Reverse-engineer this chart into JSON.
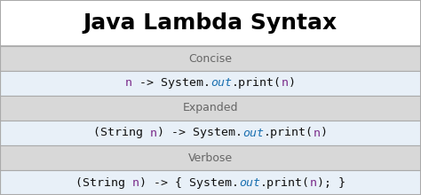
{
  "title": "Java Lambda Syntax",
  "title_fontsize": 18,
  "title_bg": "#ffffff",
  "border_color": "#aaaaaa",
  "header_color": "#d8d8d8",
  "code_bg": "#e8f0f8",
  "header_text_color": "#666666",
  "header_fontsize": 9,
  "code_fontsize": 9.5,
  "color_black": "#111111",
  "color_purple": "#7B2D8B",
  "color_blue_italic": "#1a70b0",
  "rows": [
    {
      "type": "header",
      "text": "Concise"
    },
    {
      "type": "code",
      "key": "concise"
    },
    {
      "type": "header",
      "text": "Expanded"
    },
    {
      "type": "code",
      "key": "expanded"
    },
    {
      "type": "header",
      "text": "Verbose"
    },
    {
      "type": "code",
      "key": "verbose"
    }
  ],
  "code": {
    "concise": [
      [
        "n",
        " -> System.",
        "out",
        ".print(",
        "n",
        ")"
      ]
    ],
    "expanded": [
      [
        "(String ",
        "n",
        ") -> System.",
        "out",
        ".print(",
        "n",
        ")"
      ]
    ],
    "verbose": [
      [
        "(String ",
        "n",
        ") -> { System.",
        "out",
        ".print(",
        "n",
        "); }"
      ]
    ]
  },
  "code_colors": {
    "concise": [
      "#7B2D8B",
      "#111111",
      "#1a70b0",
      "#111111",
      "#7B2D8B",
      "#111111"
    ],
    "expanded": [
      "#111111",
      "#7B2D8B",
      "#111111",
      "#1a70b0",
      "#111111",
      "#7B2D8B",
      "#111111"
    ],
    "verbose": [
      "#111111",
      "#7B2D8B",
      "#111111",
      "#1a70b0",
      "#111111",
      "#7B2D8B",
      "#111111"
    ]
  },
  "code_italic": {
    "concise": [
      false,
      false,
      true,
      false,
      false,
      false
    ],
    "expanded": [
      false,
      false,
      false,
      true,
      false,
      false,
      false
    ],
    "verbose": [
      false,
      false,
      false,
      true,
      false,
      false,
      false
    ]
  }
}
